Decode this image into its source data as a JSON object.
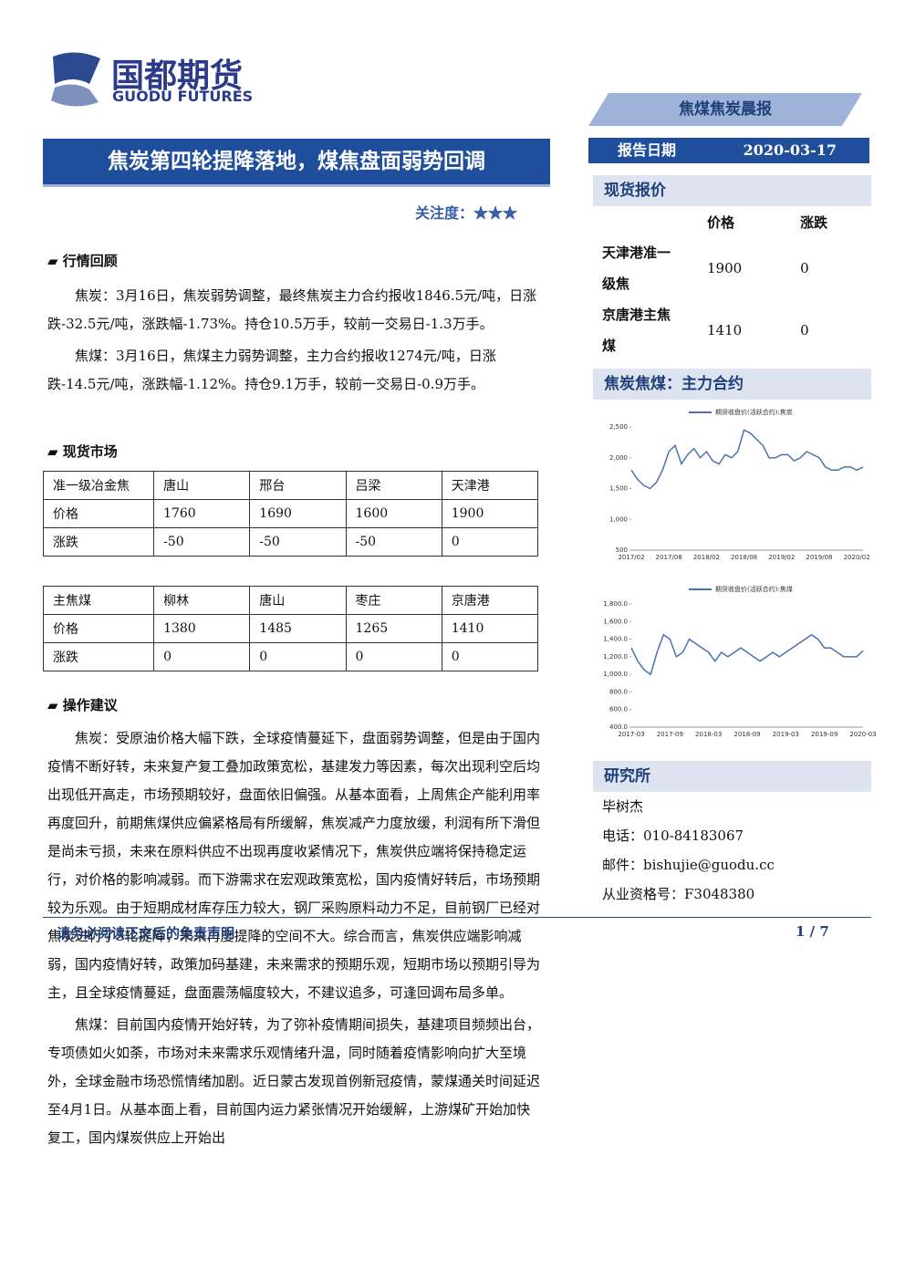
{
  "header": {
    "logo_cn": "国都期货",
    "logo_en": "GUODU FUTURES",
    "report_type": "焦煤焦炭晨报",
    "date_label": "报告日期",
    "date": "2020-03-17"
  },
  "title": "焦炭第四轮提降落地，煤焦盘面弱势回调",
  "attention": "关注度：★★★",
  "review": {
    "heading": "行情回顾",
    "paragraphs": [
      "焦炭：3月16日，焦炭弱势调整，最终焦炭主力合约报收1846.5元/吨，日涨跌-32.5元/吨，涨跌幅-1.73%。持仓10.5万手，较前一交易日-1.3万手。",
      "焦煤：3月16日，焦煤主力弱势调整，主力合约报收1274元/吨，日涨跌-14.5元/吨，涨跌幅-1.12%。持仓9.1万手，较前一交易日-0.9万手。"
    ]
  },
  "spot": {
    "heading": "现货市场",
    "tables": [
      {
        "rows": [
          [
            "准一级冶金焦",
            "唐山",
            "邢台",
            "吕梁",
            "天津港"
          ],
          [
            "价格",
            "1760",
            "1690",
            "1600",
            "1900"
          ],
          [
            "涨跌",
            "-50",
            "-50",
            "-50",
            "0"
          ]
        ]
      },
      {
        "rows": [
          [
            "主焦煤",
            "柳林",
            "唐山",
            "枣庄",
            "京唐港"
          ],
          [
            "价格",
            "1380",
            "1485",
            "1265",
            "1410"
          ],
          [
            "涨跌",
            "0",
            "0",
            "0",
            "0"
          ]
        ]
      }
    ]
  },
  "advice": {
    "heading": "操作建议",
    "paragraphs": [
      "焦炭：受原油价格大幅下跌，全球疫情蔓延下，盘面弱势调整，但是由于国内疫情不断好转，未来复产复工叠加政策宽松，基建发力等因素，每次出现利空后均出现低开高走，市场预期较好，盘面依旧偏强。从基本面看，上周焦企产能利用率再度回升，前期焦煤供应偏紧格局有所缓解，焦炭减产力度放缓，利润有所下滑但是尚未亏损，未来在原料供应不出现再度收紧情况下，焦炭供应端将保持稳定运行，对价格的影响减弱。而下游需求在宏观政策宽松，国内疫情好转后，市场预期较为乐观。由于短期成材库存压力较大，钢厂采购原料动力不足，目前钢厂已经对焦炭进行了3轮提降，未来再度提降的空间不大。综合而言，焦炭供应端影响减弱，国内疫情好转，政策加码基建，未来需求的预期乐观，短期市场以预期引导为主，且全球疫情蔓延，盘面震荡幅度较大，不建议追多，可逢回调布局多单。",
      "焦煤：目前国内疫情开始好转，为了弥补疫情期间损失，基建项目频频出台，专项债如火如荼，市场对未来需求乐观情绪升温，同时随着疫情影响向扩大至境外，全球金融市场恐慌情绪加剧。近日蒙古发现首例新冠疫情，蒙煤通关时间延迟至4月1日。从基本面上看，目前国内运力紧张情况开始缓解，上游煤矿开始加快复工，国内煤炭供应上开始出"
    ]
  },
  "sidebar": {
    "quote_heading": "现货报价",
    "quote_columns": [
      "价格",
      "涨跌"
    ],
    "quote_rows": [
      [
        "天津港准一级焦",
        "1900",
        "0"
      ],
      [
        "京唐港主焦煤",
        "1410",
        "0"
      ]
    ],
    "chart_heading": "焦炭焦煤：主力合约",
    "research_heading": "研究所",
    "contacts": [
      "毕树杰",
      "电话：010-84183067",
      "邮件：bishujie@guodu.cc",
      "从业资格号：F3048380"
    ]
  },
  "footer": {
    "disclaimer": "请务必阅读正文后的免责声明",
    "page": "1 / 7"
  },
  "chart_data": [
    {
      "type": "line",
      "x": [
        "2017/02",
        "2017/03",
        "2017/04",
        "2017/05",
        "2017/06",
        "2017/07",
        "2017/08",
        "2017/09",
        "2017/10",
        "2017/11",
        "2017/12",
        "2018/01",
        "2018/02",
        "2018/03",
        "2018/04",
        "2018/05",
        "2018/06",
        "2018/07",
        "2018/08",
        "2018/09",
        "2018/10",
        "2018/11",
        "2018/12",
        "2019/01",
        "2019/02",
        "2019/03",
        "2019/04",
        "2019/05",
        "2019/06",
        "2019/07",
        "2019/08",
        "2019/09",
        "2019/10",
        "2019/11",
        "2019/12",
        "2020/01",
        "2020/02",
        "2020/03"
      ],
      "xticks": [
        "2017/02",
        "2017/08",
        "2018/02",
        "2018/08",
        "2019/02",
        "2019/08",
        "2020/02"
      ],
      "series": [
        {
          "name": "期货收盘价(活跃合约):焦炭",
          "color": "#4a72b0",
          "values": [
            1800,
            1650,
            1550,
            1500,
            1600,
            1800,
            2100,
            2200,
            1900,
            2050,
            2150,
            2000,
            2100,
            1950,
            1900,
            2050,
            2000,
            2100,
            2450,
            2400,
            2300,
            2200,
            2000,
            2000,
            2050,
            2050,
            1950,
            2000,
            2100,
            2050,
            2000,
            1850,
            1800,
            1800,
            1850,
            1850,
            1800,
            1850
          ]
        }
      ],
      "ylim": [
        500,
        2500
      ],
      "yticks": [
        500,
        {
          "value": 1000,
          "label": "1,000"
        },
        {
          "value": 1500,
          "label": "1,500"
        },
        {
          "value": 2000,
          "label": "2,000"
        },
        {
          "value": 2500,
          "label": "2,500"
        }
      ]
    },
    {
      "type": "line",
      "x": [
        "2017-03",
        "2017-04",
        "2017-05",
        "2017-06",
        "2017-07",
        "2017-08",
        "2017-09",
        "2017-10",
        "2017-11",
        "2017-12",
        "2018-01",
        "2018-02",
        "2018-03",
        "2018-04",
        "2018-05",
        "2018-06",
        "2018-07",
        "2018-08",
        "2018-09",
        "2018-10",
        "2018-11",
        "2018-12",
        "2019-01",
        "2019-02",
        "2019-03",
        "2019-04",
        "2019-05",
        "2019-06",
        "2019-07",
        "2019-08",
        "2019-09",
        "2019-10",
        "2019-11",
        "2019-12",
        "2020-01",
        "2020-02",
        "2020-03"
      ],
      "xticks": [
        "2017-03",
        "2017-09",
        "2018-03",
        "2018-09",
        "2019-03",
        "2019-09",
        "2020-03"
      ],
      "series": [
        {
          "name": "期货收盘价(活跃合约):焦煤",
          "color": "#4a72b0",
          "values": [
            1300,
            1150,
            1050,
            1000,
            1250,
            1450,
            1400,
            1200,
            1250,
            1400,
            1350,
            1300,
            1250,
            1150,
            1250,
            1200,
            1250,
            1300,
            1250,
            1200,
            1150,
            1200,
            1250,
            1200,
            1250,
            1300,
            1350,
            1400,
            1450,
            1400,
            1300,
            1300,
            1250,
            1200,
            1200,
            1200,
            1270
          ]
        }
      ],
      "ylim": [
        400,
        1800
      ],
      "yticks": [
        {
          "value": 400,
          "label": "400.0"
        },
        {
          "value": 600,
          "label": "600.0"
        },
        {
          "value": 800,
          "label": "800.0"
        },
        {
          "value": 1000,
          "label": "1,000.0"
        },
        {
          "value": 1200,
          "label": "1,200.0"
        },
        {
          "value": 1400,
          "label": "1,400.0"
        },
        {
          "value": 1600,
          "label": "1,600.0"
        },
        {
          "value": 1800,
          "label": "1,800.0"
        }
      ]
    }
  ]
}
